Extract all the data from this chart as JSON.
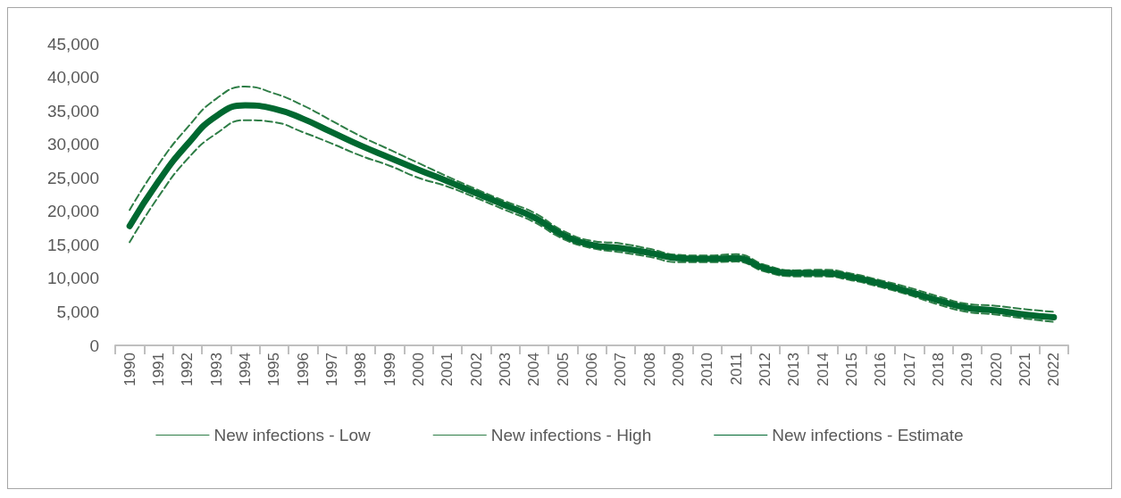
{
  "chart_data": {
    "type": "line",
    "categories": [
      "1990",
      "1991",
      "1992",
      "1993",
      "1994",
      "1995",
      "1996",
      "1997",
      "1998",
      "1999",
      "2000",
      "2001",
      "2002",
      "2003",
      "2004",
      "2005",
      "2006",
      "2007",
      "2008",
      "2009",
      "2010",
      "2011",
      "2012",
      "2013",
      "2014",
      "2015",
      "2016",
      "2017",
      "2018",
      "2019",
      "2020",
      "2021",
      "2022"
    ],
    "ylim": [
      0,
      45000
    ],
    "yticks": [
      {
        "value": 0,
        "label": "0"
      },
      {
        "value": 5000,
        "label": "5,000"
      },
      {
        "value": 10000,
        "label": "10,000"
      },
      {
        "value": 15000,
        "label": "15,000"
      },
      {
        "value": 20000,
        "label": "20,000"
      },
      {
        "value": 25000,
        "label": "25,000"
      },
      {
        "value": 30000,
        "label": "30,000"
      },
      {
        "value": 35000,
        "label": "35,000"
      },
      {
        "value": 40000,
        "label": "40,000"
      },
      {
        "value": 45000,
        "label": "45,000"
      }
    ],
    "grid": false,
    "legend": "bottom",
    "marker": "none",
    "series": [
      {
        "name": "New infections - Low",
        "color": "#2e7d46",
        "line_style": "dashed",
        "values": [
          15400,
          22200,
          27800,
          31600,
          33600,
          33300,
          31800,
          30100,
          28300,
          26800,
          25000,
          23700,
          22000,
          20200,
          18400,
          15900,
          14500,
          13900,
          13200,
          12400,
          12400,
          12500,
          11000,
          10300,
          10300,
          9700,
          8700,
          7500,
          6100,
          5000,
          4600,
          4000,
          3500
        ]
      },
      {
        "name": "New infections - High",
        "color": "#2e7d46",
        "line_style": "dashed",
        "values": [
          20200,
          27000,
          32500,
          36800,
          38600,
          37600,
          35800,
          33500,
          31200,
          29200,
          27200,
          25200,
          23300,
          21500,
          19800,
          17100,
          15600,
          15200,
          14400,
          13500,
          13400,
          13600,
          12000,
          11200,
          11300,
          10700,
          9700,
          8600,
          7300,
          6200,
          5900,
          5400,
          5000
        ]
      },
      {
        "name": "New infections - Estimate",
        "color": "#006830",
        "line_style": "solid",
        "values": [
          17800,
          24500,
          30000,
          34200,
          35800,
          35300,
          33800,
          31800,
          29800,
          28000,
          26200,
          24500,
          22700,
          20900,
          19100,
          16500,
          15000,
          14500,
          13800,
          13000,
          12900,
          13000,
          11500,
          10800,
          10800,
          10200,
          9200,
          8000,
          6700,
          5600,
          5200,
          4600,
          4200
        ]
      }
    ]
  }
}
